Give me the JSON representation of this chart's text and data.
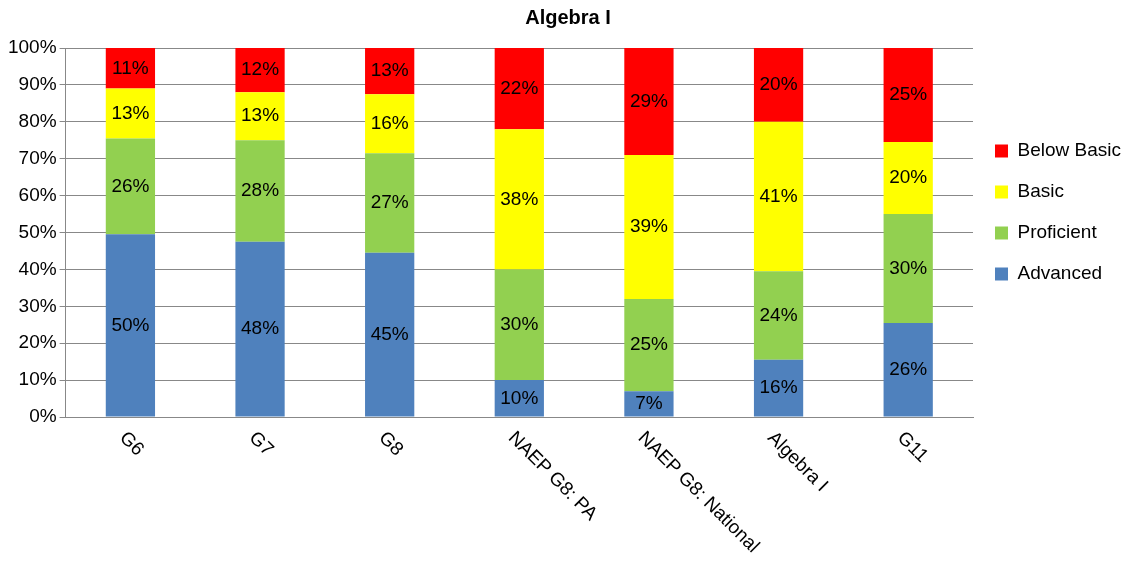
{
  "chart_data": {
    "type": "bar",
    "title": "Algebra I",
    "categories": [
      "G6",
      "G7",
      "G8",
      "NAEP G8: PA",
      "NAEP G8: National",
      "Algebra I",
      "G11"
    ],
    "stacked": true,
    "ylim": [
      0,
      100
    ],
    "yticks": [
      {
        "value": 0,
        "label": "0%"
      },
      {
        "value": 10,
        "label": "10%"
      },
      {
        "value": 20,
        "label": "20%"
      },
      {
        "value": 30,
        "label": "30%"
      },
      {
        "value": 40,
        "label": "40%"
      },
      {
        "value": 50,
        "label": "50%"
      },
      {
        "value": 60,
        "label": "60%"
      },
      {
        "value": 70,
        "label": "70%"
      },
      {
        "value": 80,
        "label": "80%"
      },
      {
        "value": 90,
        "label": "90%"
      },
      {
        "value": 100,
        "label": "100%"
      }
    ],
    "grid": "y",
    "legend": "right",
    "series": [
      {
        "name": "Advanced",
        "color": "#4f81bd",
        "values": [
          49.5,
          47.5,
          44.5,
          10,
          7,
          15.5,
          25.5
        ],
        "value_labels": [
          "50%",
          "48%",
          "45%",
          "10%",
          "7%",
          "16%",
          "26%"
        ]
      },
      {
        "name": "Proficient",
        "color": "#92d050",
        "values": [
          26,
          27.5,
          27,
          30,
          25,
          24,
          29.5
        ],
        "value_labels": [
          "26%",
          "28%",
          "27%",
          "30%",
          "25%",
          "24%",
          "30%"
        ]
      },
      {
        "name": "Basic",
        "color": "#ffff00",
        "values": [
          13.5,
          13,
          16,
          38,
          39,
          40.5,
          19.5
        ],
        "value_labels": [
          "13%",
          "13%",
          "16%",
          "38%",
          "39%",
          "41%",
          "20%"
        ]
      },
      {
        "name": "Below Basic",
        "color": "#ff0000",
        "values": [
          11,
          12,
          12.5,
          22,
          29,
          20,
          25.5
        ],
        "value_labels": [
          "11%",
          "12%",
          "13%",
          "22%",
          "29%",
          "20%",
          "25%"
        ]
      }
    ]
  }
}
